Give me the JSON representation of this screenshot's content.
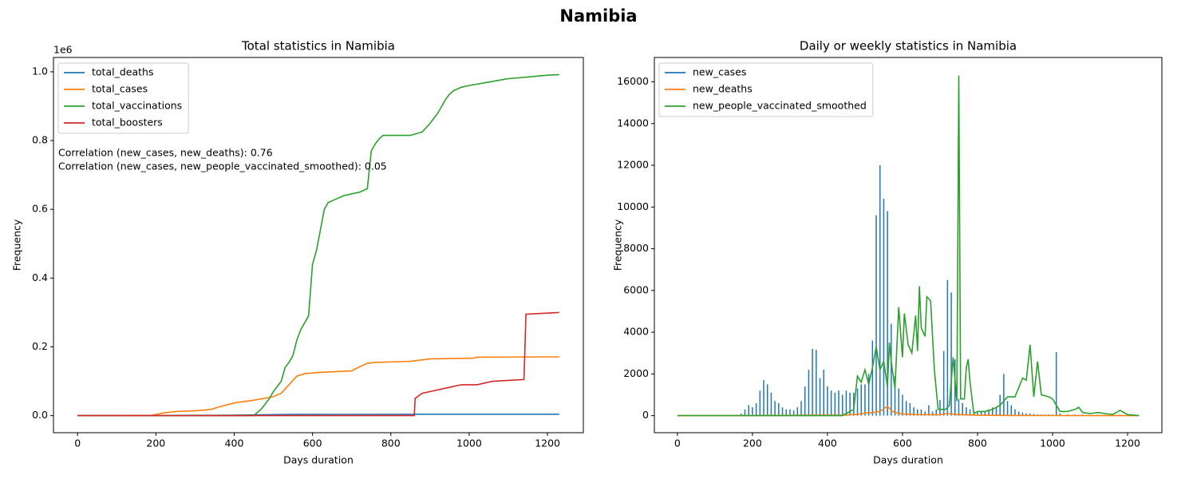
{
  "title": "Namibia",
  "chart_data": [
    {
      "type": "line",
      "title": "Total statistics in Namibia",
      "xlabel": "Days duration",
      "ylabel": "Frequency",
      "y_offset_label": "1e6",
      "annotations": [
        "Correlation (new_cases, new_deaths): 0.76",
        "Correlation (new_cases, new_people_vaccinated_smoothed): 0.05"
      ],
      "xlim": [
        -61.5,
        1291.5
      ],
      "xticks": [
        0,
        200,
        400,
        600,
        800,
        1000,
        1200
      ],
      "ylim": [
        -49600,
        1041600
      ],
      "yticks": [
        {
          "value": 0,
          "label": "0.0"
        },
        {
          "value": 200000,
          "label": "0.2"
        },
        {
          "value": 400000,
          "label": "0.4"
        },
        {
          "value": 600000,
          "label": "0.6"
        },
        {
          "value": 800000,
          "label": "0.8"
        },
        {
          "value": 1000000,
          "label": "1.0"
        }
      ],
      "legend": "upper left",
      "series": [
        {
          "name": "total_deaths",
          "color": "#1f77b4",
          "x": [
            0,
            200,
            400,
            550,
            700,
            900,
            1100,
            1230
          ],
          "values": [
            0,
            0,
            1500,
            3500,
            3700,
            4000,
            4100,
            4100
          ]
        },
        {
          "name": "total_cases",
          "color": "#ff7f0e",
          "x": [
            0,
            190,
            220,
            250,
            300,
            340,
            360,
            400,
            450,
            500,
            520,
            540,
            560,
            580,
            620,
            700,
            720,
            740,
            760,
            850,
            900,
            1010,
            1020,
            1230
          ],
          "values": [
            0,
            1000,
            8000,
            12000,
            14000,
            18000,
            25000,
            37000,
            45000,
            55000,
            65000,
            90000,
            115000,
            122000,
            126000,
            130000,
            142000,
            152000,
            155000,
            158000,
            165000,
            167000,
            170000,
            171000
          ]
        },
        {
          "name": "total_vaccinations",
          "color": "#2ca02c",
          "x": [
            0,
            450,
            470,
            490,
            500,
            520,
            530,
            540,
            550,
            560,
            570,
            580,
            590,
            600,
            610,
            620,
            630,
            640,
            660,
            680,
            720,
            740,
            750,
            760,
            770,
            780,
            800,
            850,
            880,
            900,
            920,
            930,
            940,
            950,
            960,
            970,
            980,
            1000,
            1050,
            1100,
            1150,
            1200,
            1230
          ],
          "values": [
            0,
            0,
            20000,
            50000,
            70000,
            100000,
            140000,
            155000,
            175000,
            220000,
            250000,
            270000,
            290000,
            440000,
            480000,
            540000,
            600000,
            620000,
            630000,
            640000,
            650000,
            660000,
            770000,
            790000,
            805000,
            815000,
            815000,
            815000,
            825000,
            850000,
            880000,
            900000,
            920000,
            935000,
            945000,
            950000,
            955000,
            960000,
            970000,
            980000,
            985000,
            990000,
            992000
          ]
        },
        {
          "name": "total_boosters",
          "color": "#d62728",
          "x": [
            0,
            860,
            862,
            880,
            900,
            940,
            980,
            1020,
            1060,
            1140,
            1145,
            1180,
            1230
          ],
          "values": [
            0,
            0,
            50000,
            65000,
            70000,
            80000,
            90000,
            90000,
            100000,
            105000,
            295000,
            297000,
            300000
          ]
        }
      ]
    },
    {
      "type": "line",
      "title": "Daily or weekly statistics in Namibia",
      "xlabel": "Days duration",
      "ylabel": "Frequency",
      "xlim": [
        -61.5,
        1291.5
      ],
      "xticks": [
        0,
        200,
        400,
        600,
        800,
        1000,
        1200
      ],
      "ylim": [
        -817,
        17167
      ],
      "yticks": [
        0,
        2000,
        4000,
        6000,
        8000,
        10000,
        12000,
        14000,
        16000
      ],
      "legend": "upper left",
      "series": [
        {
          "name": "new_cases",
          "color": "#1f77b4",
          "style": "stem",
          "x": [
            0,
            170,
            180,
            190,
            200,
            210,
            220,
            230,
            240,
            250,
            260,
            270,
            280,
            290,
            300,
            310,
            320,
            330,
            340,
            350,
            360,
            370,
            380,
            390,
            400,
            410,
            420,
            430,
            440,
            450,
            460,
            470,
            480,
            490,
            500,
            510,
            520,
            530,
            540,
            550,
            560,
            570,
            580,
            590,
            600,
            610,
            620,
            630,
            640,
            650,
            660,
            670,
            680,
            690,
            700,
            710,
            720,
            730,
            740,
            750,
            760,
            770,
            780,
            790,
            800,
            810,
            820,
            830,
            840,
            850,
            860,
            870,
            880,
            890,
            900,
            910,
            920,
            930,
            940,
            950,
            960,
            970,
            980,
            990,
            1000,
            1010,
            1020,
            1040,
            1060,
            1080,
            1100,
            1120,
            1140,
            1160,
            1180,
            1200,
            1230
          ],
          "values": [
            0,
            100,
            300,
            500,
            400,
            600,
            1200,
            1700,
            1500,
            1100,
            700,
            600,
            400,
            300,
            300,
            250,
            400,
            700,
            1400,
            2200,
            3200,
            3150,
            1800,
            2200,
            1400,
            1200,
            1100,
            1200,
            1000,
            1200,
            1100,
            1100,
            1300,
            1500,
            1500,
            2000,
            3600,
            9600,
            12000,
            10400,
            9800,
            4400,
            1900,
            1300,
            1000,
            700,
            600,
            400,
            300,
            300,
            200,
            500,
            200,
            300,
            750,
            3100,
            6500,
            5900,
            2700,
            800,
            600,
            400,
            300,
            200,
            150,
            200,
            200,
            300,
            400,
            400,
            1000,
            2000,
            700,
            500,
            300,
            200,
            150,
            100,
            100,
            80,
            60,
            50,
            50,
            60,
            50,
            3050,
            100,
            60,
            50,
            50,
            40,
            40,
            40,
            30,
            30,
            30,
            20
          ]
        },
        {
          "name": "new_deaths",
          "color": "#ff7f0e",
          "x": [
            0,
            200,
            220,
            300,
            360,
            440,
            480,
            500,
            520,
            540,
            560,
            570,
            580,
            600,
            640,
            700,
            720,
            740,
            800,
            900,
            1000,
            1230
          ],
          "values": [
            0,
            0,
            10,
            15,
            20,
            20,
            60,
            120,
            150,
            200,
            450,
            250,
            150,
            80,
            50,
            40,
            100,
            60,
            20,
            10,
            5,
            0
          ]
        },
        {
          "name": "new_people_vaccinated_smoothed",
          "color": "#2ca02c",
          "x": [
            0,
            440,
            450,
            470,
            480,
            490,
            500,
            510,
            520,
            530,
            540,
            550,
            560,
            565,
            570,
            580,
            590,
            600,
            605,
            615,
            625,
            635,
            640,
            645,
            650,
            660,
            665,
            675,
            685,
            695,
            705,
            715,
            725,
            735,
            745,
            750,
            755,
            765,
            770,
            775,
            780,
            790,
            800,
            820,
            840,
            860,
            880,
            900,
            920,
            930,
            940,
            950,
            960,
            970,
            990,
            1000,
            1020,
            1040,
            1060,
            1070,
            1080,
            1100,
            1120,
            1140,
            1160,
            1180,
            1200,
            1230
          ],
          "values": [
            0,
            0,
            100,
            300,
            1900,
            1600,
            2200,
            1500,
            2300,
            3300,
            2200,
            2600,
            1400,
            3500,
            2600,
            1300,
            5200,
            2800,
            4900,
            3400,
            3000,
            4800,
            3100,
            6200,
            4200,
            3800,
            5700,
            5500,
            2200,
            300,
            300,
            300,
            500,
            2800,
            700,
            16300,
            800,
            800,
            2300,
            2700,
            1600,
            100,
            200,
            200,
            300,
            500,
            900,
            900,
            1800,
            1700,
            3400,
            900,
            2600,
            1000,
            900,
            800,
            200,
            200,
            300,
            400,
            150,
            100,
            150,
            100,
            50,
            250,
            50,
            0
          ]
        }
      ]
    }
  ]
}
